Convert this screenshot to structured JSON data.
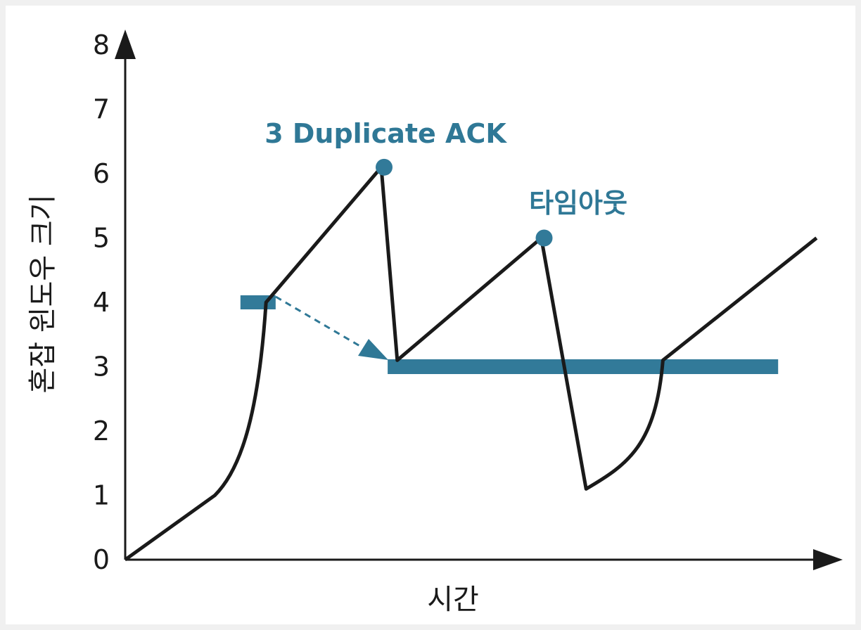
{
  "chart_data": {
    "type": "line",
    "xlabel": "시간",
    "ylabel": "혼잡 윈도우 크기",
    "ylim": [
      0,
      8
    ],
    "y_ticks": [
      "0",
      "1",
      "2",
      "3",
      "4",
      "5",
      "6",
      "7",
      "8"
    ],
    "grid": false,
    "colors": {
      "line": "#1a1a1a",
      "accent": "#327a99"
    },
    "series": [
      {
        "values": [
          [
            0,
            0
          ],
          [
            1.4,
            1
          ],
          [
            2.2,
            4
          ],
          [
            4.0,
            6.1
          ],
          [
            4.25,
            3.1
          ],
          [
            6.5,
            5.0
          ],
          [
            7.2,
            1.1
          ],
          [
            8.4,
            3.1
          ],
          [
            10.8,
            5.0
          ]
        ]
      }
    ],
    "thresholds": [
      {
        "from_x": 1.8,
        "to_x": 2.35,
        "y": 4
      },
      {
        "from_x": 4.1,
        "to_x": 10.2,
        "y": 3
      }
    ],
    "annotations": [
      {
        "text": "3 Duplicate ACK",
        "x": 4.0,
        "y": 6.1
      },
      {
        "text": "타임아웃",
        "x": 6.5,
        "y": 5.0
      }
    ]
  }
}
